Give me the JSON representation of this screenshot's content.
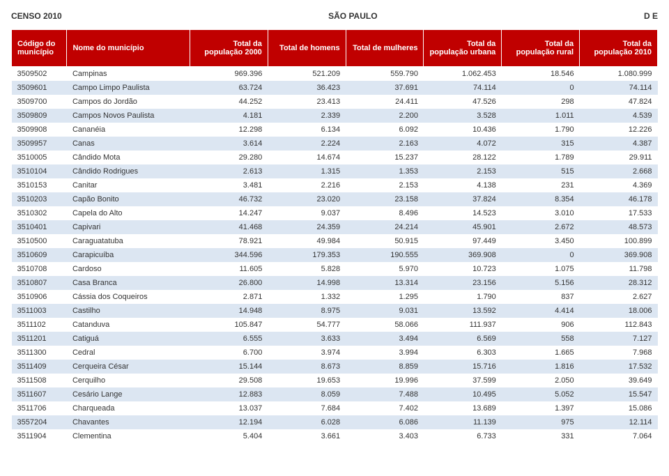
{
  "header": {
    "left": "CENSO 2010",
    "center": "SÃO PAULO",
    "right": "D  E"
  },
  "table": {
    "columns": [
      "Código do município",
      "Nome do município",
      "Total da população 2000",
      "Total de homens",
      "Total de mulheres",
      "Total da população urbana",
      "Total da população rural",
      "Total da população 2010"
    ],
    "col_classes": [
      "col-code",
      "col-name",
      "col-num",
      "col-num",
      "col-num",
      "col-num",
      "col-num",
      "col-num"
    ],
    "rows": [
      [
        "3509502",
        "Campinas",
        "969.396",
        "521.209",
        "559.790",
        "1.062.453",
        "18.546",
        "1.080.999"
      ],
      [
        "3509601",
        "Campo Limpo Paulista",
        "63.724",
        "36.423",
        "37.691",
        "74.114",
        "0",
        "74.114"
      ],
      [
        "3509700",
        "Campos do Jordão",
        "44.252",
        "23.413",
        "24.411",
        "47.526",
        "298",
        "47.824"
      ],
      [
        "3509809",
        "Campos Novos Paulista",
        "4.181",
        "2.339",
        "2.200",
        "3.528",
        "1.011",
        "4.539"
      ],
      [
        "3509908",
        "Cananéia",
        "12.298",
        "6.134",
        "6.092",
        "10.436",
        "1.790",
        "12.226"
      ],
      [
        "3509957",
        "Canas",
        "3.614",
        "2.224",
        "2.163",
        "4.072",
        "315",
        "4.387"
      ],
      [
        "3510005",
        "Cândido Mota",
        "29.280",
        "14.674",
        "15.237",
        "28.122",
        "1.789",
        "29.911"
      ],
      [
        "3510104",
        "Cândido Rodrigues",
        "2.613",
        "1.315",
        "1.353",
        "2.153",
        "515",
        "2.668"
      ],
      [
        "3510153",
        "Canitar",
        "3.481",
        "2.216",
        "2.153",
        "4.138",
        "231",
        "4.369"
      ],
      [
        "3510203",
        "Capão Bonito",
        "46.732",
        "23.020",
        "23.158",
        "37.824",
        "8.354",
        "46.178"
      ],
      [
        "3510302",
        "Capela do Alto",
        "14.247",
        "9.037",
        "8.496",
        "14.523",
        "3.010",
        "17.533"
      ],
      [
        "3510401",
        "Capivari",
        "41.468",
        "24.359",
        "24.214",
        "45.901",
        "2.672",
        "48.573"
      ],
      [
        "3510500",
        "Caraguatatuba",
        "78.921",
        "49.984",
        "50.915",
        "97.449",
        "3.450",
        "100.899"
      ],
      [
        "3510609",
        "Carapicuíba",
        "344.596",
        "179.353",
        "190.555",
        "369.908",
        "0",
        "369.908"
      ],
      [
        "3510708",
        "Cardoso",
        "11.605",
        "5.828",
        "5.970",
        "10.723",
        "1.075",
        "11.798"
      ],
      [
        "3510807",
        "Casa Branca",
        "26.800",
        "14.998",
        "13.314",
        "23.156",
        "5.156",
        "28.312"
      ],
      [
        "3510906",
        "Cássia dos Coqueiros",
        "2.871",
        "1.332",
        "1.295",
        "1.790",
        "837",
        "2.627"
      ],
      [
        "3511003",
        "Castilho",
        "14.948",
        "8.975",
        "9.031",
        "13.592",
        "4.414",
        "18.006"
      ],
      [
        "3511102",
        "Catanduva",
        "105.847",
        "54.777",
        "58.066",
        "111.937",
        "906",
        "112.843"
      ],
      [
        "3511201",
        "Catiguá",
        "6.555",
        "3.633",
        "3.494",
        "6.569",
        "558",
        "7.127"
      ],
      [
        "3511300",
        "Cedral",
        "6.700",
        "3.974",
        "3.994",
        "6.303",
        "1.665",
        "7.968"
      ],
      [
        "3511409",
        "Cerqueira César",
        "15.144",
        "8.673",
        "8.859",
        "15.716",
        "1.816",
        "17.532"
      ],
      [
        "3511508",
        "Cerquilho",
        "29.508",
        "19.653",
        "19.996",
        "37.599",
        "2.050",
        "39.649"
      ],
      [
        "3511607",
        "Cesário Lange",
        "12.883",
        "8.059",
        "7.488",
        "10.495",
        "5.052",
        "15.547"
      ],
      [
        "3511706",
        "Charqueada",
        "13.037",
        "7.684",
        "7.402",
        "13.689",
        "1.397",
        "15.086"
      ],
      [
        "3557204",
        "Chavantes",
        "12.194",
        "6.028",
        "6.086",
        "11.139",
        "975",
        "12.114"
      ],
      [
        "3511904",
        "Clementina",
        "5.404",
        "3.661",
        "3.403",
        "6.733",
        "331",
        "7.064"
      ]
    ]
  },
  "style": {
    "header_bg": "#c00000",
    "header_fg": "#ffffff",
    "row_even_bg": "#ffffff",
    "row_odd_bg": "#dce6f2",
    "font_size_pt": 11
  }
}
